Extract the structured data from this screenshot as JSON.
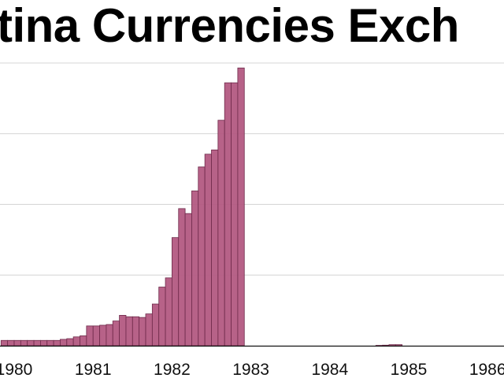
{
  "chart_data": {
    "type": "bar",
    "title": "tina Currencies Exch",
    "xlabel": "",
    "ylabel": "",
    "x_tick_labels": [
      "1980",
      "1981",
      "1982",
      "1983",
      "1984",
      "1985",
      "1986"
    ],
    "ylim": [
      0,
      4
    ],
    "grid": true,
    "bar_color": "#b35a82",
    "bar_edge_color": "#6e2a4a",
    "series": [
      {
        "dates": [
          "1979-11",
          "1979-12",
          "1980-01",
          "1980-02",
          "1980-03",
          "1980-04",
          "1980-05",
          "1980-06",
          "1980-07",
          "1980-08",
          "1980-09",
          "1980-10",
          "1980-11",
          "1980-12",
          "1981-01",
          "1981-02",
          "1981-03",
          "1981-04",
          "1981-05",
          "1981-06",
          "1981-07",
          "1981-08",
          "1981-09",
          "1981-10",
          "1981-11",
          "1981-12",
          "1982-01",
          "1982-02",
          "1982-03",
          "1982-04",
          "1982-05",
          "1982-06",
          "1982-07",
          "1982-08",
          "1982-09",
          "1982-10",
          "1982-11",
          "1984-08",
          "1984-09",
          "1984-10",
          "1984-11"
        ],
        "values": [
          0.075,
          0.075,
          0.075,
          0.075,
          0.075,
          0.075,
          0.075,
          0.075,
          0.075,
          0.09,
          0.1,
          0.125,
          0.14,
          0.28,
          0.28,
          0.29,
          0.3,
          0.35,
          0.43,
          0.41,
          0.41,
          0.4,
          0.45,
          0.59,
          0.83,
          0.96,
          1.53,
          1.94,
          1.87,
          2.19,
          2.53,
          2.71,
          2.77,
          3.19,
          3.72,
          3.72,
          3.93,
          0.005,
          0.008,
          0.015,
          0.015
        ]
      }
    ]
  }
}
